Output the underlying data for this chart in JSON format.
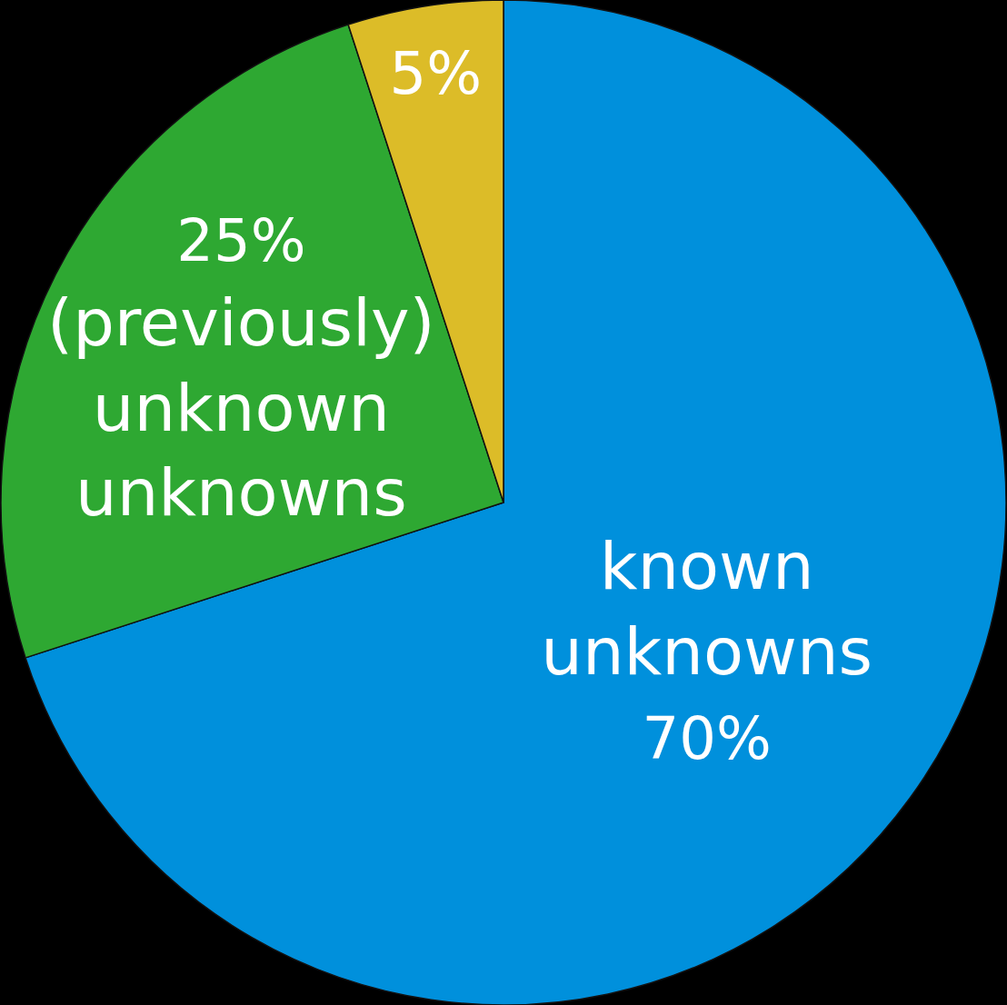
{
  "chart_data": {
    "type": "pie",
    "categories": [
      "known unknowns",
      "(previously) unknown unknowns",
      null
    ],
    "values": [
      70,
      25,
      5
    ],
    "colors": [
      "#0090dc",
      "#2ea832",
      "#dcbc28"
    ],
    "value_labels": [
      "70%",
      "25%",
      "5%"
    ]
  }
}
